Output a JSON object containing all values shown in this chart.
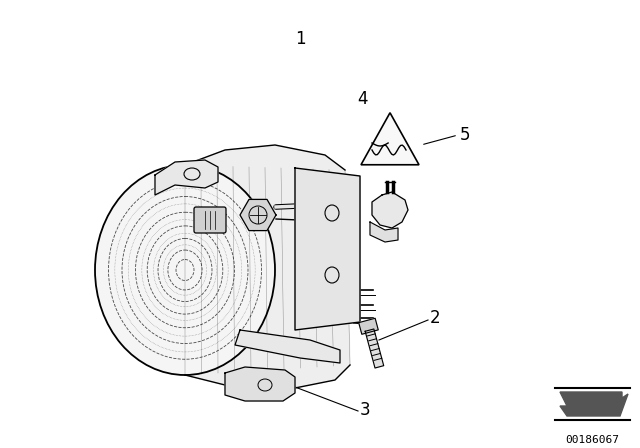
{
  "bg_color": "#ffffff",
  "line_color": "#000000",
  "label_1": "1",
  "label_2": "2",
  "label_3": "3",
  "label_4": "4",
  "label_5": "5",
  "part_number": "00186067",
  "font_size_labels": 12,
  "font_size_part": 8,
  "fig_width": 6.4,
  "fig_height": 4.48,
  "dpi": 100
}
